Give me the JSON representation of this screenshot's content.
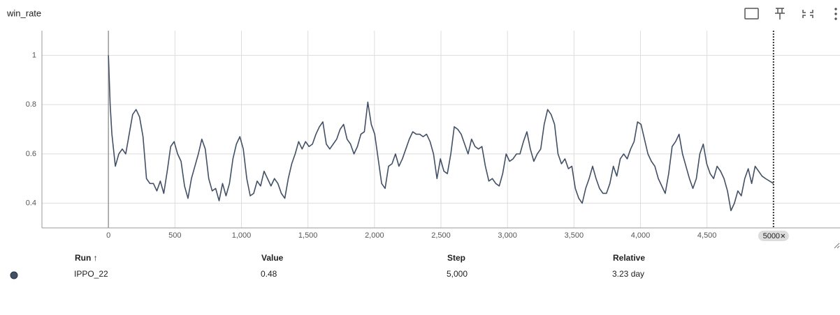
{
  "chart_data": {
    "type": "line",
    "title": "win_rate",
    "xlim": [
      -500,
      5500
    ],
    "ylim": [
      0.3,
      1.1
    ],
    "xticks": [
      0,
      500,
      {
        "value": 1000,
        "label": "1,000"
      },
      {
        "value": 1500,
        "label": "1,500"
      },
      {
        "value": 2000,
        "label": "2,000"
      },
      {
        "value": 2500,
        "label": "2,500"
      },
      {
        "value": 3000,
        "label": "3,000"
      },
      {
        "value": 3500,
        "label": "3,500"
      },
      {
        "value": 4000,
        "label": "4,000"
      },
      {
        "value": 4500,
        "label": "4,500"
      }
    ],
    "yticks": [
      0.4,
      0.6,
      0.8,
      1
    ],
    "grid": true,
    "cursor_x": 5000,
    "series": [
      {
        "name": "IPPO_22",
        "color": "#425066",
        "x": [
          0,
          13,
          26,
          52,
          78,
          104,
          130,
          156,
          182,
          208,
          234,
          260,
          286,
          312,
          338,
          364,
          390,
          416,
          442,
          468,
          494,
          520,
          546,
          572,
          598,
          624,
          650,
          676,
          702,
          728,
          754,
          780,
          806,
          832,
          858,
          884,
          910,
          936,
          962,
          988,
          1014,
          1040,
          1066,
          1092,
          1118,
          1144,
          1170,
          1196,
          1222,
          1248,
          1274,
          1300,
          1326,
          1352,
          1378,
          1404,
          1430,
          1456,
          1482,
          1508,
          1534,
          1560,
          1586,
          1612,
          1638,
          1664,
          1690,
          1716,
          1742,
          1768,
          1794,
          1820,
          1846,
          1872,
          1898,
          1924,
          1950,
          1976,
          2002,
          2028,
          2054,
          2080,
          2106,
          2132,
          2158,
          2184,
          2210,
          2236,
          2262,
          2288,
          2314,
          2340,
          2366,
          2392,
          2418,
          2444,
          2470,
          2496,
          2522,
          2548,
          2574,
          2600,
          2626,
          2652,
          2678,
          2704,
          2730,
          2756,
          2782,
          2808,
          2834,
          2860,
          2886,
          2912,
          2938,
          2964,
          2990,
          3016,
          3042,
          3068,
          3094,
          3120,
          3146,
          3172,
          3198,
          3224,
          3250,
          3276,
          3302,
          3328,
          3354,
          3380,
          3406,
          3432,
          3458,
          3484,
          3510,
          3536,
          3562,
          3588,
          3614,
          3640,
          3666,
          3692,
          3718,
          3744,
          3770,
          3796,
          3822,
          3848,
          3874,
          3900,
          3926,
          3952,
          3978,
          4004,
          4030,
          4056,
          4082,
          4108,
          4134,
          4160,
          4186,
          4212,
          4238,
          4264,
          4290,
          4316,
          4342,
          4368,
          4394,
          4420,
          4446,
          4472,
          4498,
          4524,
          4550,
          4576,
          4602,
          4628,
          4654,
          4680,
          4706,
          4732,
          4758,
          4784,
          4810,
          4836,
          4862,
          4888,
          4914,
          4940,
          5000
        ],
        "values": [
          1.0,
          0.8,
          0.68,
          0.55,
          0.6,
          0.62,
          0.6,
          0.68,
          0.76,
          0.78,
          0.75,
          0.67,
          0.5,
          0.48,
          0.48,
          0.45,
          0.49,
          0.44,
          0.53,
          0.63,
          0.65,
          0.6,
          0.57,
          0.47,
          0.42,
          0.5,
          0.55,
          0.6,
          0.66,
          0.62,
          0.5,
          0.45,
          0.46,
          0.41,
          0.48,
          0.43,
          0.48,
          0.58,
          0.64,
          0.67,
          0.62,
          0.5,
          0.43,
          0.44,
          0.49,
          0.47,
          0.53,
          0.5,
          0.47,
          0.5,
          0.48,
          0.44,
          0.42,
          0.5,
          0.56,
          0.6,
          0.65,
          0.62,
          0.65,
          0.63,
          0.64,
          0.68,
          0.71,
          0.73,
          0.64,
          0.62,
          0.64,
          0.66,
          0.7,
          0.72,
          0.66,
          0.64,
          0.6,
          0.63,
          0.68,
          0.69,
          0.81,
          0.72,
          0.68,
          0.58,
          0.48,
          0.46,
          0.55,
          0.56,
          0.6,
          0.55,
          0.58,
          0.62,
          0.66,
          0.69,
          0.68,
          0.68,
          0.67,
          0.68,
          0.65,
          0.6,
          0.5,
          0.58,
          0.53,
          0.52,
          0.6,
          0.71,
          0.7,
          0.68,
          0.64,
          0.6,
          0.66,
          0.63,
          0.62,
          0.63,
          0.55,
          0.49,
          0.5,
          0.48,
          0.47,
          0.52,
          0.6,
          0.57,
          0.58,
          0.6,
          0.6,
          0.65,
          0.69,
          0.62,
          0.57,
          0.6,
          0.62,
          0.72,
          0.78,
          0.76,
          0.72,
          0.6,
          0.56,
          0.58,
          0.54,
          0.55,
          0.46,
          0.42,
          0.4,
          0.46,
          0.5,
          0.55,
          0.5,
          0.46,
          0.44,
          0.44,
          0.48,
          0.55,
          0.51,
          0.58,
          0.6,
          0.58,
          0.62,
          0.65,
          0.73,
          0.72,
          0.66,
          0.6,
          0.57,
          0.55,
          0.5,
          0.47,
          0.44,
          0.52,
          0.63,
          0.65,
          0.68,
          0.6,
          0.55,
          0.5,
          0.46,
          0.5,
          0.6,
          0.64,
          0.56,
          0.52,
          0.5,
          0.55,
          0.53,
          0.5,
          0.45,
          0.37,
          0.4,
          0.45,
          0.43,
          0.5,
          0.54,
          0.48,
          0.55,
          0.53,
          0.51,
          0.5,
          0.48
        ]
      }
    ]
  },
  "table": {
    "columns": [
      "Run ↑",
      "Value",
      "Step",
      "Relative"
    ],
    "rows": [
      [
        "IPPO_22",
        "0.48",
        "5,000",
        "3.23 day"
      ]
    ]
  }
}
